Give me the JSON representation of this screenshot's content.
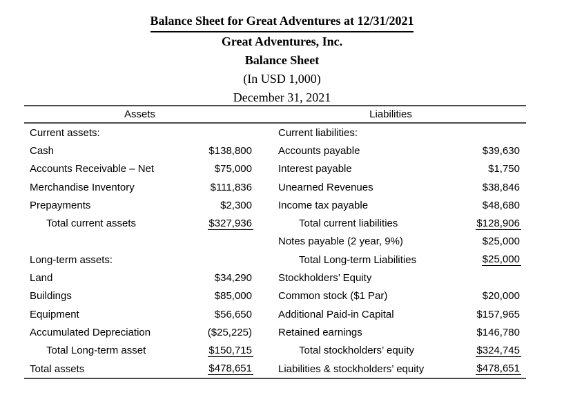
{
  "colors": {
    "text": "#000000",
    "rule": "#4a4a4a",
    "background": "#ffffff"
  },
  "header": {
    "title": "Balance Sheet for Great Adventures at 12/31/2021",
    "company": "Great Adventures, Inc.",
    "statement": "Balance Sheet",
    "units": "(In USD 1,000)",
    "date": "December 31, 2021"
  },
  "table": {
    "left_header": "Assets",
    "right_header": "Liabilities",
    "rows": [
      {
        "l_label": "Current assets:",
        "l_indent": false,
        "l_value": "",
        "l_uline": false,
        "r_label": "Current liabilities:",
        "r_indent": false,
        "r_value": "",
        "r_uline": false
      },
      {
        "l_label": "Cash",
        "l_indent": false,
        "l_value": "$138,800",
        "l_uline": false,
        "r_label": "Accounts payable",
        "r_indent": false,
        "r_value": "$39,630",
        "r_uline": false
      },
      {
        "l_label": "Accounts Receivable – Net",
        "l_indent": false,
        "l_value": "$75,000",
        "l_uline": false,
        "r_label": "Interest payable",
        "r_indent": false,
        "r_value": "$1,750",
        "r_uline": false
      },
      {
        "l_label": "Merchandise Inventory",
        "l_indent": false,
        "l_value": "$111,836",
        "l_uline": false,
        "r_label": "Unearned Revenues",
        "r_indent": false,
        "r_value": "$38,846",
        "r_uline": false
      },
      {
        "l_label": "Prepayments",
        "l_indent": false,
        "l_value": "$2,300",
        "l_uline": false,
        "r_label": "Income tax payable",
        "r_indent": false,
        "r_value": "$48,680",
        "r_uline": false
      },
      {
        "l_label": "Total current assets",
        "l_indent": true,
        "l_value": "$327,936",
        "l_uline": true,
        "r_label": "Total current liabilities",
        "r_indent": true,
        "r_value": "$128,906",
        "r_uline": true
      },
      {
        "l_label": "",
        "l_indent": false,
        "l_value": "",
        "l_uline": false,
        "r_label": "Notes payable (2 year, 9%)",
        "r_indent": false,
        "r_value": "$25,000",
        "r_uline": false
      },
      {
        "l_label": "Long-term assets:",
        "l_indent": false,
        "l_value": "",
        "l_uline": false,
        "r_label": "Total Long-term Liabilities",
        "r_indent": true,
        "r_value": "$25,000",
        "r_uline": true
      },
      {
        "l_label": "Land",
        "l_indent": false,
        "l_value": "$34,290",
        "l_uline": false,
        "r_label": "Stockholders’ Equity",
        "r_indent": false,
        "r_value": "",
        "r_uline": false
      },
      {
        "l_label": "Buildings",
        "l_indent": false,
        "l_value": "$85,000",
        "l_uline": false,
        "r_label": "Common stock ($1 Par)",
        "r_indent": false,
        "r_value": "$20,000",
        "r_uline": false
      },
      {
        "l_label": "Equipment",
        "l_indent": false,
        "l_value": "$56,650",
        "l_uline": false,
        "r_label": "Additional Paid-in Capital",
        "r_indent": false,
        "r_value": "$157,965",
        "r_uline": false
      },
      {
        "l_label": "Accumulated Depreciation",
        "l_indent": false,
        "l_value": "($25,225)",
        "l_uline": false,
        "r_label": "Retained earnings",
        "r_indent": false,
        "r_value": "$146,780",
        "r_uline": false
      },
      {
        "l_label": "Total Long-term asset",
        "l_indent": true,
        "l_value": "$150,715",
        "l_uline": true,
        "r_label": "Total stockholders’ equity",
        "r_indent": true,
        "r_value": "$324,745",
        "r_uline": true
      },
      {
        "l_label": "Total assets",
        "l_indent": false,
        "l_value": "$478,651",
        "l_uline": true,
        "r_label": "Liabilities & stockholders’ equity",
        "r_indent": false,
        "r_value": "$478,651",
        "r_uline": true
      }
    ]
  }
}
